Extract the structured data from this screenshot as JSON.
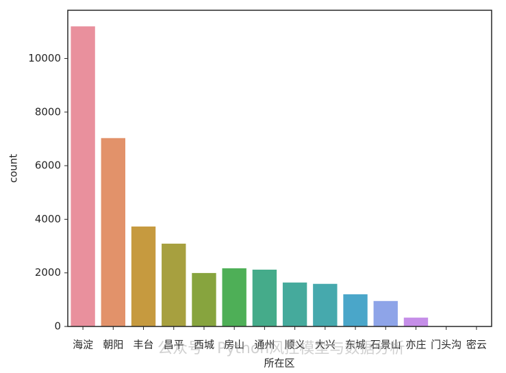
{
  "chart_data": {
    "type": "bar",
    "x_label": "所在区",
    "y_label": "count",
    "categories": [
      "海淀",
      "朝阳",
      "丰台",
      "昌平",
      "西城",
      "房山",
      "通州",
      "顺义",
      "大兴",
      "东城",
      "石景山",
      "亦庄",
      "门头沟",
      "密云"
    ],
    "values": [
      11200,
      7030,
      3730,
      3090,
      1995,
      2170,
      2120,
      1640,
      1590,
      1200,
      950,
      330,
      5,
      3
    ],
    "colors": [
      "#e9909d",
      "#e2926a",
      "#c69a3f",
      "#a7a03f",
      "#87a43e",
      "#4eaf57",
      "#45ab8a",
      "#45aa9c",
      "#46a9ad",
      "#4aa6c9",
      "#8ea4e8",
      "#c58ee8",
      "#e58ad8",
      "#e88cb9"
    ],
    "ylim": [
      0,
      11800
    ],
    "yticks": [
      0,
      2000,
      4000,
      6000,
      8000,
      10000
    ],
    "grid": false,
    "watermark": "公众号 · Python风控模型与数据分析"
  }
}
